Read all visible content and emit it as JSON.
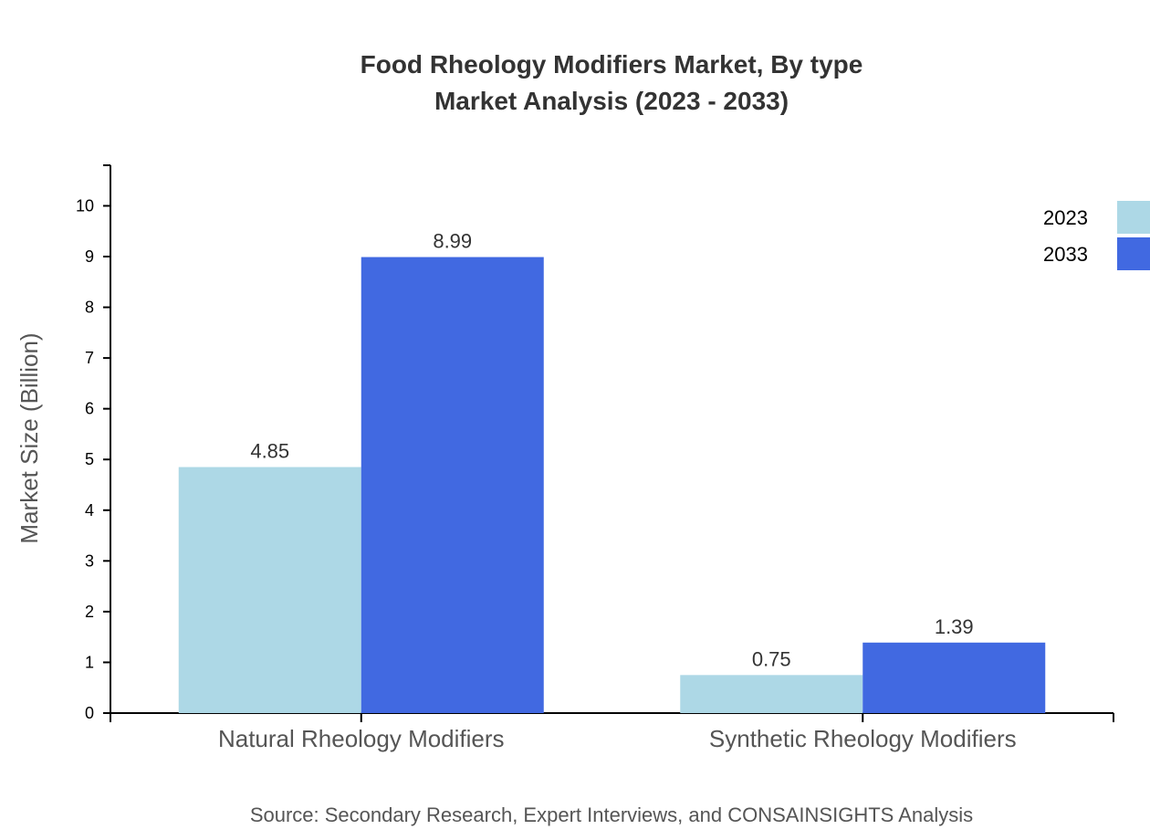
{
  "chart_data": {
    "type": "bar",
    "title": "Food Rheology Modifiers Market, By type",
    "subtitle": "Market Analysis (2023 - 2033)",
    "ylabel": "Market Size (Billion)",
    "xlabel": "",
    "ylim": [
      0,
      10.8
    ],
    "yticks": [
      0,
      1,
      2,
      3,
      4,
      5,
      6,
      7,
      8,
      9,
      10
    ],
    "categories": [
      "Natural Rheology Modifiers",
      "Synthetic Rheology Modifiers"
    ],
    "series": [
      {
        "name": "2023",
        "values": [
          4.85,
          0.75
        ],
        "color": "#add8e6"
      },
      {
        "name": "2033",
        "values": [
          8.99,
          1.39
        ],
        "color": "#4169e1"
      }
    ],
    "legend": "top-right",
    "grid": false,
    "source": "Source: Secondary Research, Expert Interviews, and CONSAINSIGHTS Analysis"
  }
}
